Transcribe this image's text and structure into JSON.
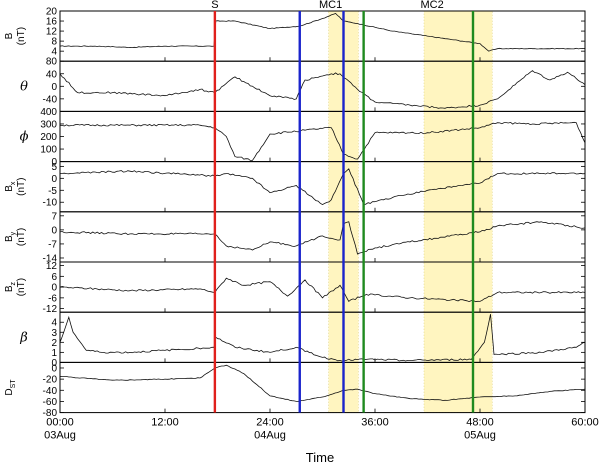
{
  "chart_data": {
    "type": "line",
    "xlabel": "Time",
    "xlim": [
      0,
      60
    ],
    "x_ticks": [
      {
        "x": 0,
        "time": "00:00",
        "date": "03Aug"
      },
      {
        "x": 12,
        "time": "12:00",
        "date": ""
      },
      {
        "x": 24,
        "time": "24:00",
        "date": "04Aug"
      },
      {
        "x": 36,
        "time": "36:00",
        "date": ""
      },
      {
        "x": 48,
        "time": "48:00",
        "date": "05Aug"
      },
      {
        "x": 60,
        "time": "60:00",
        "date": ""
      }
    ],
    "events": [
      {
        "label": "S",
        "x": 17.7,
        "color": "#e0201c"
      },
      {
        "label": "MC1",
        "x": 30.7,
        "color": ""
      },
      {
        "label": "MC2",
        "x": 42.3,
        "color": ""
      }
    ],
    "shaded_regions": [
      {
        "x0": 30.7,
        "x1": 34.1,
        "color": "#fff5c0"
      },
      {
        "x0": 41.6,
        "x1": 49.4,
        "color": "#fff5c0"
      }
    ],
    "vertical_lines": [
      {
        "x": 17.7,
        "color": "#e0201c"
      },
      {
        "x": 27.4,
        "color": "#1a24cc"
      },
      {
        "x": 32.4,
        "color": "#1a24cc"
      },
      {
        "x": 34.7,
        "color": "#1f8a1f"
      },
      {
        "x": 47.2,
        "color": "#1f8a1f"
      }
    ],
    "panels": [
      {
        "label": "B",
        "unit": "(nT)",
        "sub": "",
        "greek": false,
        "ylim": [
          0,
          20
        ],
        "ticks": [
          "4",
          "8",
          "12",
          "16",
          "20"
        ],
        "tick_values": [
          4,
          8,
          12,
          16,
          20
        ],
        "series": {
          "name": "",
          "x": [
            0,
            4,
            8,
            12,
            17.6,
            17.8,
            20,
            24,
            27.4,
            30,
            31.5,
            32.4,
            34,
            38,
            42,
            46,
            48,
            49,
            50,
            54,
            58,
            60
          ],
          "y": [
            6,
            6,
            5.5,
            6,
            6,
            16,
            16,
            13,
            14,
            17,
            19,
            16,
            15,
            12,
            10,
            8,
            7,
            4,
            5,
            5,
            5,
            5
          ]
        }
      },
      {
        "label": "θ",
        "unit": "",
        "sub": "",
        "greek": true,
        "ylim": [
          -80,
          80
        ],
        "ticks": [
          "-40",
          "0",
          "40",
          "80"
        ],
        "tick_values": [
          -40,
          0,
          40,
          80
        ],
        "series": {
          "name": "",
          "x": [
            0,
            2,
            6,
            12,
            16,
            17.7,
            20,
            24,
            27,
            28,
            31,
            32,
            34,
            36,
            40,
            44,
            48,
            50,
            54,
            56,
            58,
            60
          ],
          "y": [
            40,
            -20,
            -20,
            -30,
            -10,
            -20,
            30,
            -30,
            -40,
            20,
            40,
            40,
            -10,
            -50,
            -60,
            -70,
            -60,
            -40,
            50,
            20,
            45,
            5
          ]
        }
      },
      {
        "label": "ϕ",
        "unit": "",
        "sub": "",
        "greek": true,
        "ylim": [
          0,
          400
        ],
        "ticks": [
          "0",
          "100",
          "200",
          "300",
          "400"
        ],
        "tick_values": [
          0,
          100,
          200,
          300,
          400
        ],
        "series": {
          "name": "",
          "x": [
            0,
            8,
            16,
            17.7,
            19,
            20,
            22,
            24,
            28,
            31,
            32.4,
            34,
            36,
            42,
            48,
            50,
            54,
            59,
            60
          ],
          "y": [
            290,
            290,
            290,
            270,
            200,
            40,
            10,
            220,
            250,
            270,
            60,
            20,
            230,
            230,
            270,
            310,
            300,
            310,
            150
          ]
        }
      },
      {
        "label": "B",
        "unit": "(nT)",
        "sub": "x",
        "greek": false,
        "ylim": [
          -14,
          7
        ],
        "ticks": [
          "-10",
          "-5",
          "0",
          "5"
        ],
        "tick_values": [
          -10,
          -5,
          0,
          5
        ],
        "series": {
          "name": "",
          "x": [
            0,
            8,
            17.7,
            19,
            22,
            24,
            27,
            30,
            31,
            32.4,
            33,
            34.7,
            38,
            42,
            48,
            50,
            55,
            60
          ],
          "y": [
            2,
            3,
            1,
            2,
            0,
            -6,
            -3,
            -11,
            -9,
            2,
            4,
            -11,
            -8,
            -5,
            -2,
            2,
            2,
            2
          ]
        }
      },
      {
        "label": "B",
        "unit": "(nT)",
        "sub": "y",
        "greek": false,
        "ylim": [
          -16,
          9
        ],
        "ticks": [
          "-14",
          "-7",
          "0",
          "7"
        ],
        "tick_values": [
          -14,
          -7,
          0,
          7
        ],
        "series": {
          "name": "",
          "x": [
            0,
            8,
            17.7,
            19,
            22,
            24,
            27,
            30,
            32,
            32.4,
            33,
            34,
            36,
            40,
            48,
            50,
            55,
            60
          ],
          "y": [
            -1,
            -2,
            -2,
            -8,
            -10,
            -6,
            -8,
            -3,
            -5,
            3,
            4,
            -12,
            -9,
            -6,
            -1,
            2,
            4,
            1
          ]
        }
      },
      {
        "label": "B",
        "unit": "(nT)",
        "sub": "z",
        "greek": false,
        "ylim": [
          -14,
          14
        ],
        "ticks": [
          "-12",
          "-6",
          "0",
          "6",
          "12"
        ],
        "tick_values": [
          -12,
          -6,
          0,
          6,
          12
        ],
        "series": {
          "name": "",
          "x": [
            0,
            8,
            16,
            17.7,
            19,
            21,
            24,
            26,
            28,
            30,
            32,
            33,
            35,
            40,
            48,
            50,
            55,
            60
          ],
          "y": [
            0,
            -2,
            -1,
            -3,
            5,
            1,
            3,
            -5,
            4,
            -6,
            1,
            -8,
            -4,
            -6,
            -8,
            -3,
            -3,
            -3
          ]
        }
      },
      {
        "label": "β",
        "unit": "",
        "sub": "",
        "greek": true,
        "ylim": [
          0,
          5
        ],
        "ticks": [
          "0",
          "1",
          "2",
          "3",
          "4"
        ],
        "tick_values": [
          0,
          1,
          2,
          3,
          4
        ],
        "series": {
          "name": "",
          "x": [
            0,
            1,
            1.5,
            3,
            5,
            8,
            12,
            17.6,
            17.8,
            20,
            24,
            27,
            30,
            32,
            35,
            40,
            47,
            48.5,
            49.2,
            49.6,
            50,
            55,
            59,
            60
          ],
          "y": [
            2,
            4.5,
            3,
            1.2,
            1,
            1,
            1.2,
            1.5,
            2.5,
            1.5,
            1,
            1.5,
            0.5,
            0.2,
            0.3,
            0.2,
            0.3,
            2,
            4.8,
            0.8,
            0.8,
            1,
            1.5,
            2
          ]
        }
      },
      {
        "label": "D",
        "unit": "",
        "sub": "ST",
        "greek": false,
        "ylim": [
          -80,
          10
        ],
        "ticks": [
          "-80",
          "-60",
          "-40",
          "-20",
          "0"
        ],
        "tick_values": [
          -80,
          -60,
          -40,
          -20,
          0
        ],
        "series": {
          "name": "",
          "x": [
            0,
            6,
            12,
            16,
            17.7,
            19,
            21,
            24,
            27,
            30,
            32.4,
            34,
            36,
            40,
            44,
            48,
            52,
            56,
            60
          ],
          "y": [
            -15,
            -22,
            -20,
            -18,
            0,
            5,
            -10,
            -50,
            -60,
            -52,
            -40,
            -38,
            -46,
            -55,
            -58,
            -52,
            -50,
            -42,
            -38
          ]
        }
      }
    ]
  }
}
